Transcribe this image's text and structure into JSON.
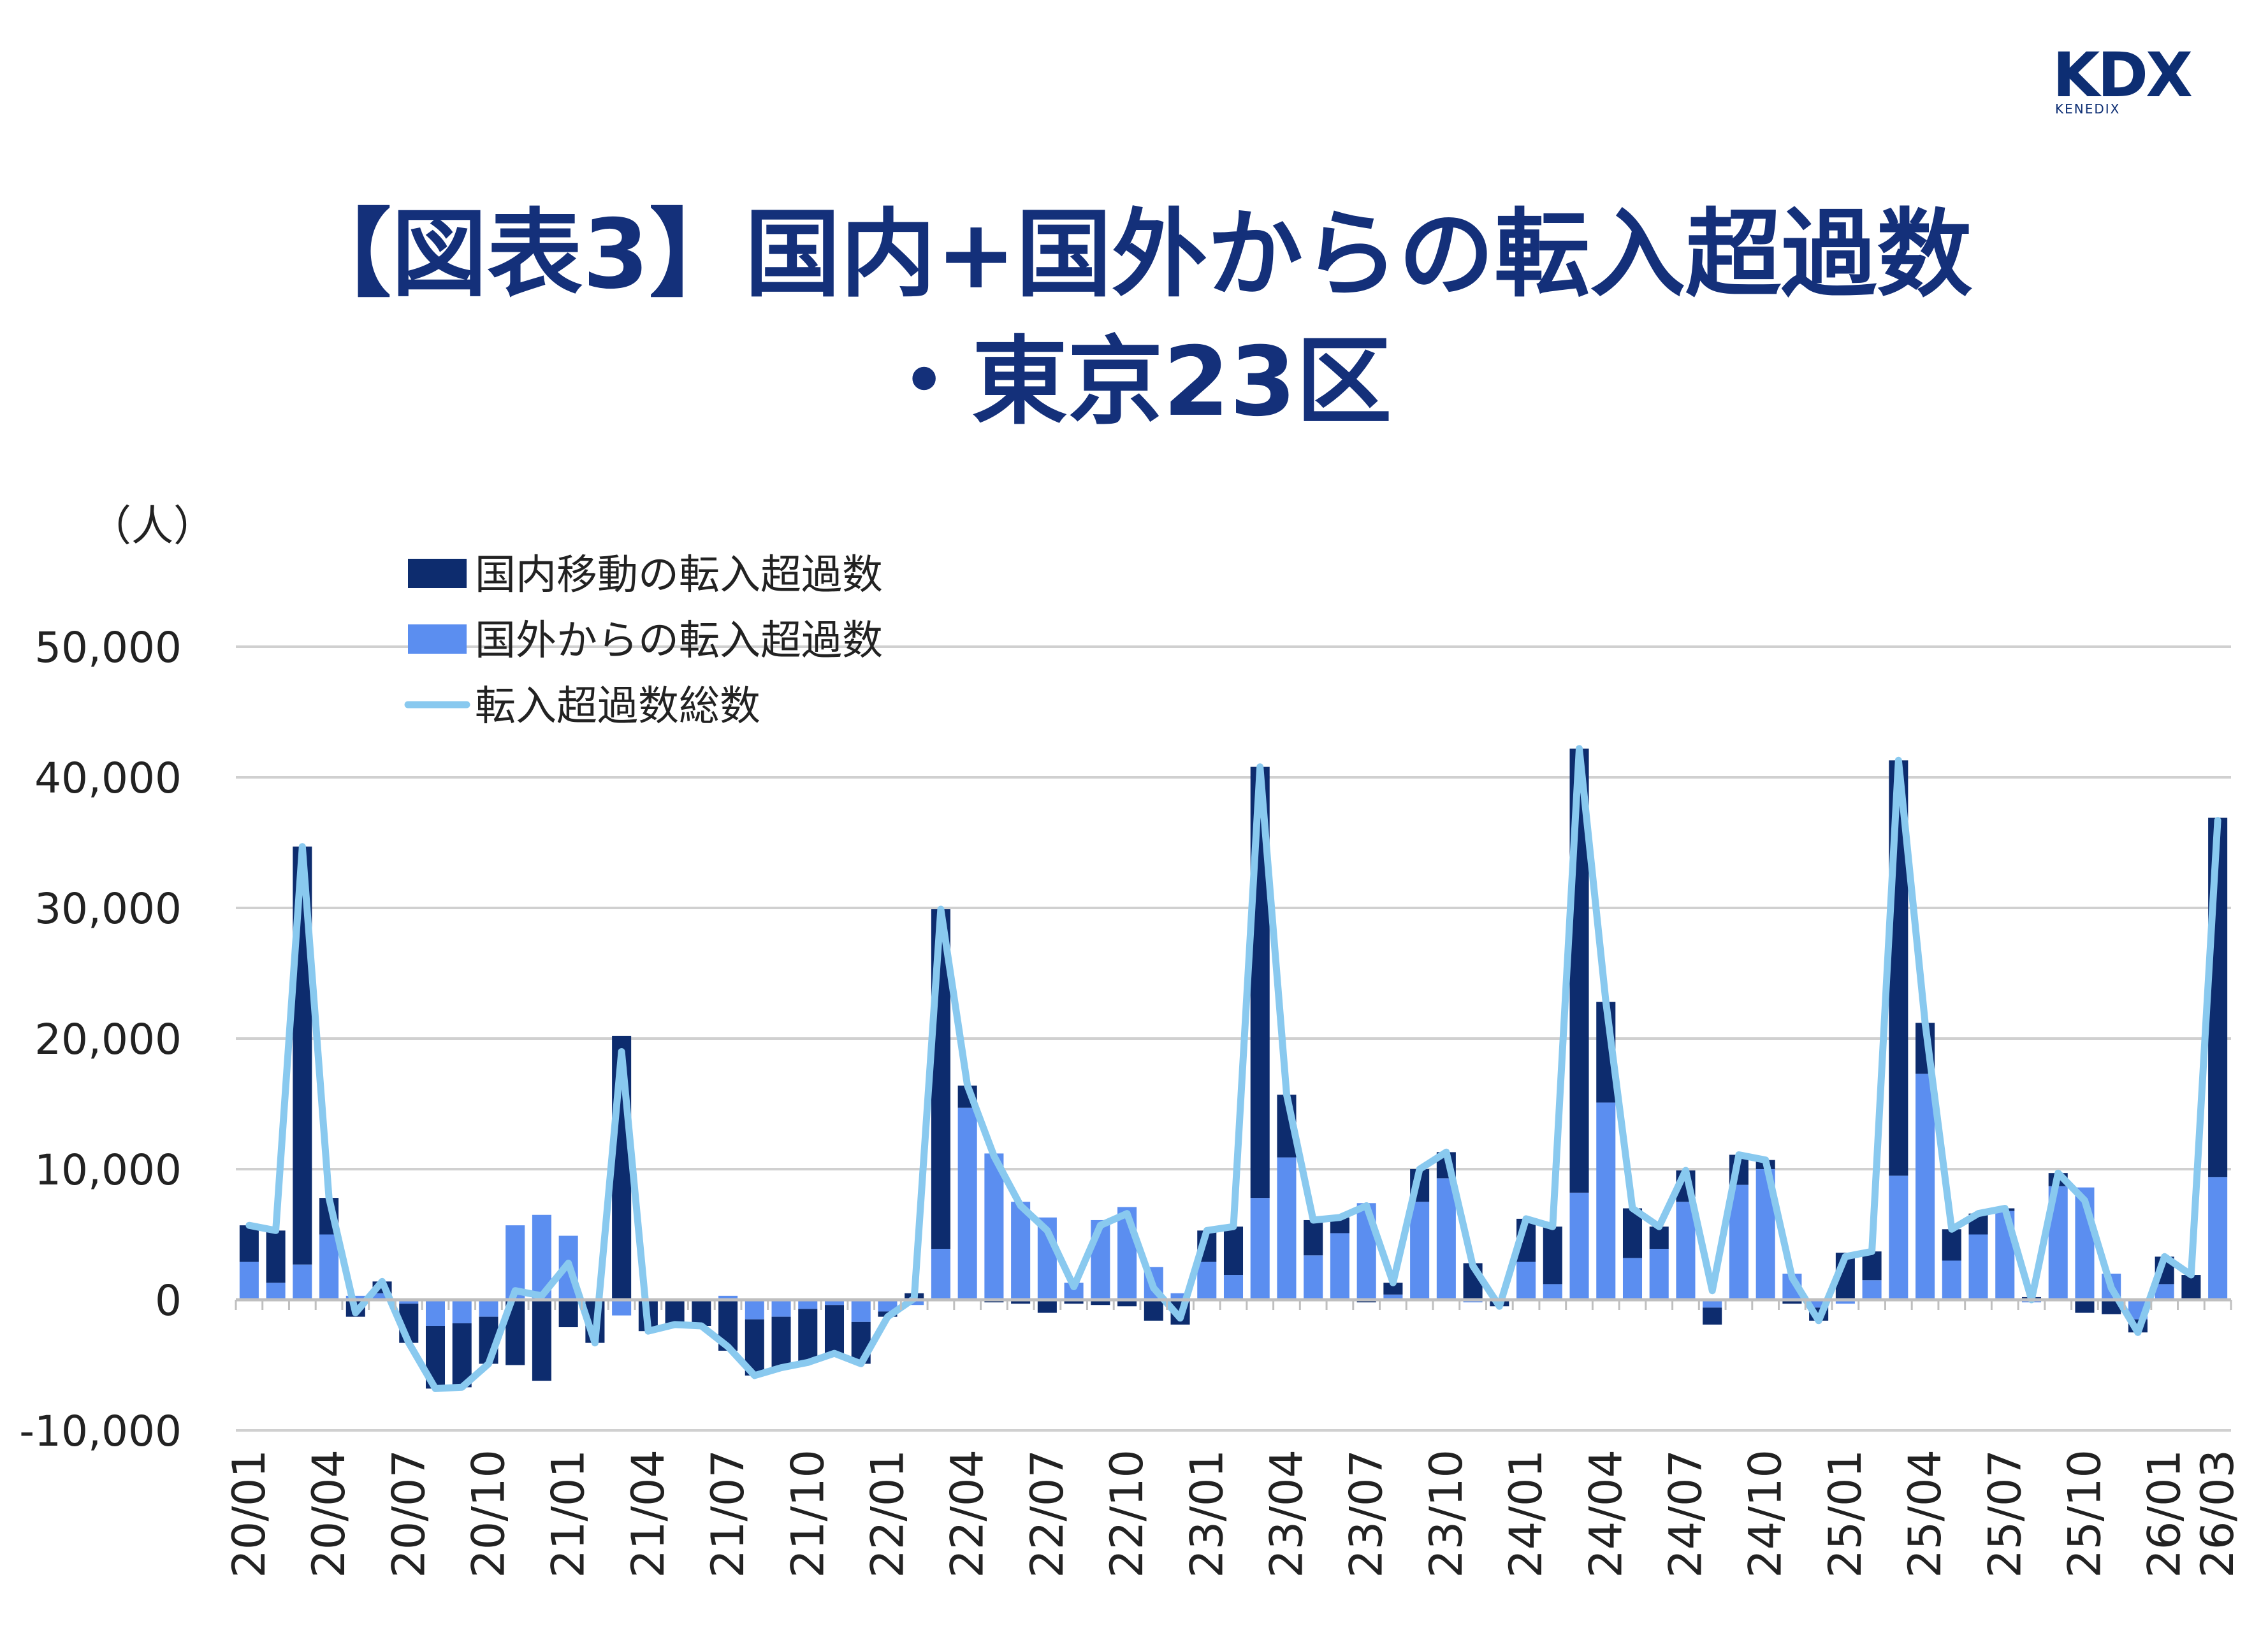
{
  "logo": {
    "main": "KDX",
    "sub": "KENEDIX"
  },
  "title": {
    "line1": "【図表3】国内+国外からの転入超過数",
    "line2": "・東京23区"
  },
  "colors": {
    "domestic": "#0d2c6e",
    "foreign": "#5b8ef0",
    "total": "#89c9ef",
    "grid": "#d0d0d0",
    "text": "#222222",
    "title": "#14307a"
  },
  "chart_data": {
    "type": "bar",
    "stacked": true,
    "ylabel": "（人）",
    "ylim": [
      -10000,
      50000
    ],
    "yticks": [
      -10000,
      0,
      10000,
      20000,
      30000,
      40000,
      50000
    ],
    "ytick_labels": [
      "-10,000",
      "0",
      "10,000",
      "20,000",
      "30,000",
      "40,000",
      "50,000"
    ],
    "xtick_labels": [
      "20/01",
      "20/04",
      "20/07",
      "20/10",
      "21/01",
      "21/04",
      "21/07",
      "21/10",
      "22/01",
      "22/04",
      "22/07",
      "22/10",
      "23/01",
      "23/04",
      "23/07",
      "23/10",
      "24/01",
      "24/04",
      "24/07",
      "24/10",
      "25/01",
      "25/04",
      "25/07",
      "25/10",
      "26/01",
      "26/03"
    ],
    "grid": true,
    "legend_position": "top-left",
    "legend": [
      "国内移動の転入超過数",
      "国外からの転入超過数",
      "転入超過数総数"
    ],
    "categories": [
      "20/01",
      "20/02",
      "20/03",
      "20/04",
      "20/05",
      "20/06",
      "20/07",
      "20/08",
      "20/09",
      "20/10",
      "20/11",
      "20/12",
      "21/01",
      "21/02",
      "21/03",
      "21/04",
      "21/05",
      "21/06",
      "21/07",
      "21/08",
      "21/09",
      "21/10",
      "21/11",
      "21/12",
      "22/01",
      "22/02",
      "22/03",
      "22/04",
      "22/05",
      "22/06",
      "22/07",
      "22/08",
      "22/09",
      "22/10",
      "22/11",
      "22/12",
      "23/01",
      "23/02",
      "23/03",
      "23/04",
      "23/05",
      "23/06",
      "23/07",
      "23/08",
      "23/09",
      "23/10",
      "23/11",
      "23/12",
      "24/01",
      "24/02",
      "24/03",
      "24/04",
      "24/05",
      "24/06",
      "24/07",
      "24/08",
      "24/09",
      "24/10",
      "24/11",
      "24/12",
      "25/01",
      "25/02",
      "25/03",
      "25/04",
      "25/05",
      "25/06",
      "25/07",
      "25/08",
      "25/09",
      "25/10",
      "25/11",
      "25/12",
      "26/01",
      "26/02",
      "26/03"
    ],
    "series": [
      {
        "name": "国内移動の転入超過数",
        "kind": "bar",
        "values": [
          2800,
          4000,
          32000,
          2800,
          -1300,
          900,
          -3000,
          -4800,
          -4900,
          -3600,
          -5000,
          -6200,
          -2100,
          -3200,
          20200,
          -2300,
          -1800,
          -1900,
          -3900,
          -4300,
          -3900,
          -4100,
          -3700,
          -3200,
          -400,
          500,
          26000,
          1700,
          -200,
          -300,
          -1000,
          -300,
          -400,
          -500,
          -1600,
          -1900,
          2400,
          3700,
          33000,
          4800,
          2700,
          1200,
          -200,
          900,
          2500,
          2000,
          2800,
          -400,
          3300,
          4400,
          34000,
          7700,
          3800,
          1700,
          2400,
          -1300,
          2300,
          700,
          -300,
          -1000,
          3600,
          2200,
          31800,
          3900,
          2400,
          1600,
          200,
          200,
          1000,
          -1000,
          -1100,
          -1000,
          2100,
          1800,
          27500
        ]
      },
      {
        "name": "国外からの転入超過数",
        "kind": "bar",
        "values": [
          2900,
          1300,
          2700,
          5000,
          300,
          500,
          -300,
          -2000,
          -1800,
          -1300,
          5700,
          6500,
          4900,
          -100,
          -1200,
          -100,
          -100,
          -100,
          300,
          -1500,
          -1300,
          -700,
          -400,
          -1700,
          -900,
          -400,
          3900,
          14700,
          11200,
          7500,
          6300,
          1300,
          6100,
          7100,
          2500,
          500,
          2900,
          1900,
          7800,
          10900,
          3400,
          5100,
          7400,
          400,
          7500,
          9300,
          -200,
          -100,
          2900,
          1200,
          8200,
          15100,
          3200,
          3900,
          7500,
          -600,
          8800,
          10000,
          2000,
          -600,
          -300,
          1500,
          9500,
          17300,
          3000,
          5000,
          6800,
          -200,
          8700,
          8600,
          2000,
          -1500,
          1200,
          100,
          9400
        ]
      },
      {
        "name": "転入超過数総数",
        "kind": "line",
        "values": [
          5700,
          5300,
          34700,
          7800,
          -1000,
          1400,
          -3300,
          -6800,
          -6700,
          -4900,
          700,
          300,
          2800,
          -3300,
          19000,
          -2400,
          -1900,
          -2000,
          -3600,
          -5800,
          -5200,
          -4800,
          -4100,
          -4900,
          -1300,
          100,
          29900,
          16400,
          11000,
          7200,
          5300,
          1000,
          5700,
          6600,
          900,
          -1400,
          5300,
          5600,
          40800,
          15700,
          6100,
          6300,
          7200,
          1300,
          10000,
          11300,
          2600,
          -500,
          6200,
          5600,
          42200,
          22800,
          7000,
          5600,
          9900,
          700,
          11100,
          10700,
          1700,
          -1600,
          3300,
          3700,
          41300,
          21200,
          5400,
          6600,
          7000,
          0,
          9700,
          7600,
          900,
          -2500,
          3300,
          1900,
          36700
        ]
      }
    ]
  }
}
